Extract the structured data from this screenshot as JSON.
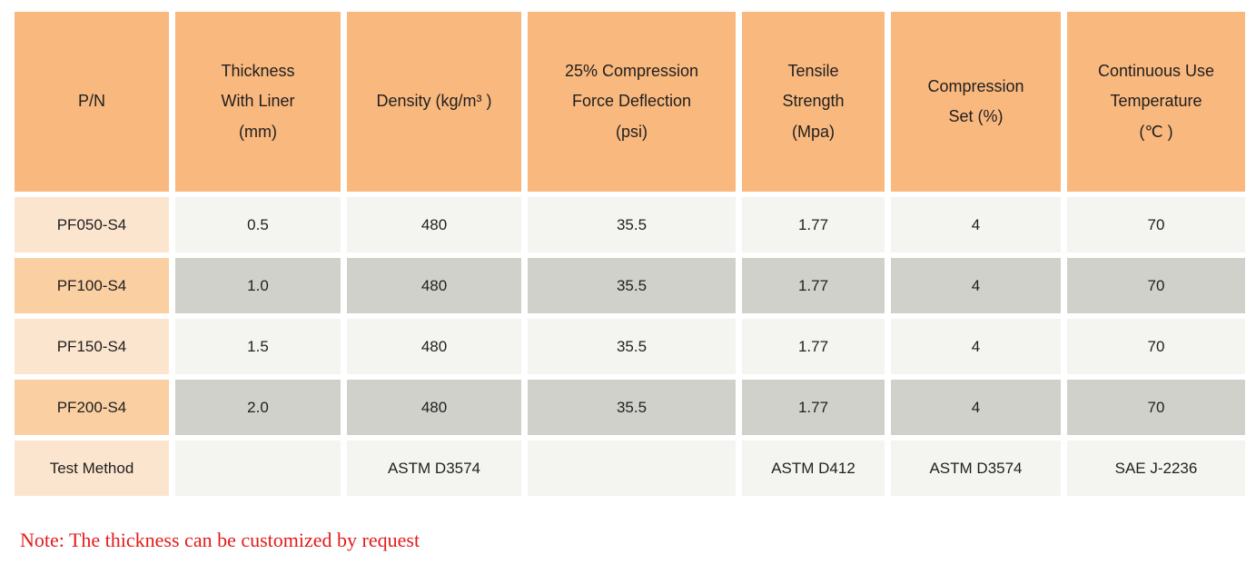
{
  "table": {
    "headers": [
      "P/N",
      "Thickness\nWith Liner\n(mm)",
      "Density (kg/m³ )",
      "25% Compression\nForce Deflection\n(psi)",
      "Tensile\nStrength\n(Mpa)",
      "Compression\nSet (%)",
      "Continuous Use\nTemperature\n(℃ )"
    ],
    "rows": [
      {
        "cells": [
          "PF050-S4",
          "0.5",
          "480",
          "35.5",
          "1.77",
          "4",
          "70"
        ]
      },
      {
        "cells": [
          "PF100-S4",
          "1.0",
          "480",
          "35.5",
          "1.77",
          "4",
          "70"
        ]
      },
      {
        "cells": [
          "PF150-S4",
          "1.5",
          "480",
          "35.5",
          "1.77",
          "4",
          "70"
        ]
      },
      {
        "cells": [
          "PF200-S4",
          "2.0",
          "480",
          "35.5",
          "1.77",
          "4",
          "70"
        ]
      },
      {
        "cells": [
          "Test Method",
          "",
          "ASTM D3574",
          "",
          "ASTM D412",
          "ASTM D3574",
          "SAE J-2236"
        ]
      }
    ]
  },
  "note": "Note: The thickness can be customized by request",
  "colors": {
    "header_bg": "#f9b87e",
    "pn_row_light": "#fce5ce",
    "pn_row_dark": "#facfa2",
    "cell_light": "#f4f4f0",
    "cell_dark": "#d1d1cc",
    "text": "#1f1f1f",
    "note_red": "#e31b1b"
  }
}
